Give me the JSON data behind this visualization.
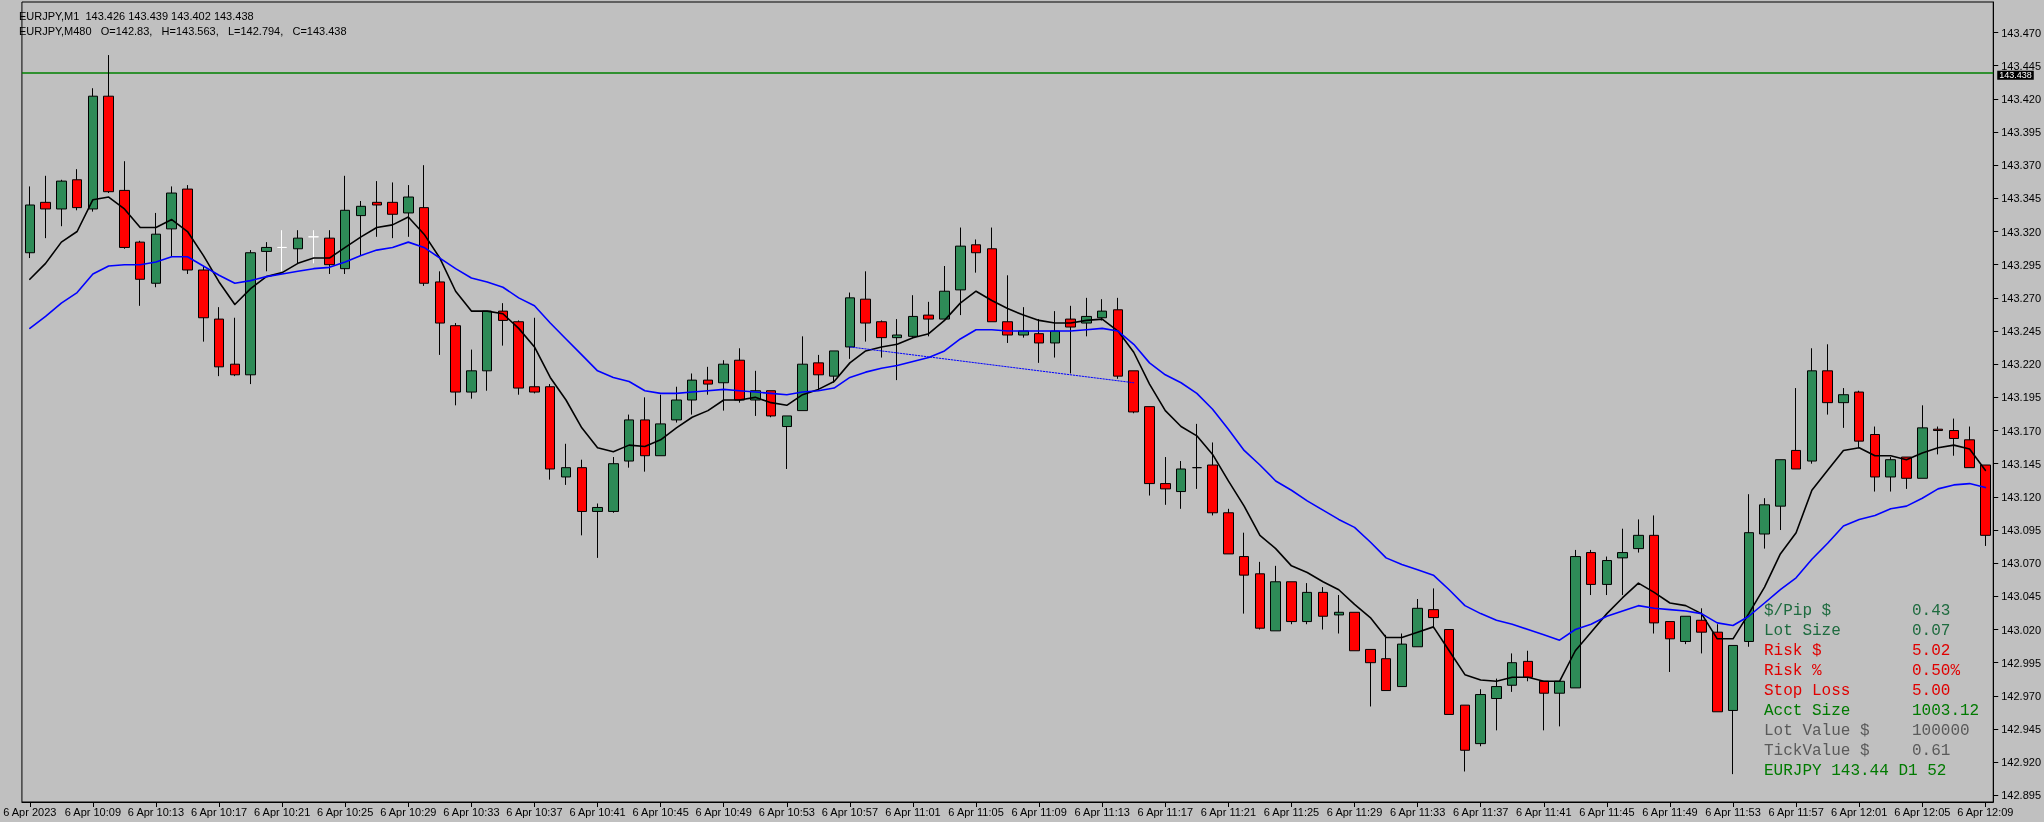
{
  "chart_data": {
    "type": "candlestick",
    "title": "EURJPY,M1  143.426 143.439 143.402 143.438",
    "subtitle": "EURJPY,M480   O=142.83,   H=143.563,   L=142.794,   C=143.438",
    "categories": [
      "6 Apr 2023",
      null,
      null,
      null,
      "6 Apr 10:09",
      null,
      null,
      null,
      "6 Apr 10:13",
      null,
      null,
      null,
      "6 Apr 10:17",
      null,
      null,
      null,
      "6 Apr 10:21",
      null,
      null,
      null,
      "6 Apr 10:25",
      null,
      null,
      null,
      "6 Apr 10:29",
      null,
      null,
      null,
      "6 Apr 10:33",
      null,
      null,
      null,
      "6 Apr 10:37",
      null,
      null,
      null,
      "6 Apr 10:41",
      null,
      null,
      null,
      "6 Apr 10:45",
      null,
      null,
      null,
      "6 Apr 10:49",
      null,
      null,
      null,
      "6 Apr 10:53",
      null,
      null,
      null,
      "6 Apr 10:57",
      null,
      null,
      null,
      "6 Apr 11:01",
      null,
      null,
      null,
      "6 Apr 11:05",
      null,
      null,
      null,
      "6 Apr 11:09",
      null,
      null,
      null,
      "6 Apr 11:13",
      null,
      null,
      null,
      "6 Apr 11:17",
      null,
      null,
      null,
      "6 Apr 11:21",
      null,
      null,
      null,
      "6 Apr 11:25",
      null,
      null,
      null,
      "6 Apr 11:29",
      null,
      null,
      null,
      "6 Apr 11:33",
      null,
      null,
      null,
      "6 Apr 11:37",
      null,
      null,
      null,
      "6 Apr 11:41",
      null,
      null,
      null,
      "6 Apr 11:45",
      null,
      null,
      null,
      "6 Apr 11:49",
      null,
      null,
      null,
      "6 Apr 11:53",
      null,
      null,
      null,
      "6 Apr 11:57",
      null,
      null,
      null,
      "6 Apr 12:01",
      null,
      null,
      null,
      "6 Apr 12:05",
      null,
      null,
      null,
      "6 Apr 12:09"
    ],
    "ohlc": [
      [
        143.304,
        143.354,
        143.3,
        143.34
      ],
      [
        143.342,
        143.362,
        143.315,
        143.337
      ],
      [
        143.337,
        143.359,
        143.324,
        143.358
      ],
      [
        143.359,
        143.367,
        143.336,
        143.338
      ],
      [
        143.337,
        143.428,
        143.335,
        143.422
      ],
      [
        143.422,
        143.453,
        143.349,
        143.35
      ],
      [
        143.351,
        143.373,
        143.307,
        143.308
      ],
      [
        143.312,
        143.313,
        143.264,
        143.284
      ],
      [
        143.281,
        143.334,
        143.278,
        143.318
      ],
      [
        143.322,
        143.354,
        143.301,
        143.349
      ],
      [
        143.352,
        143.355,
        143.288,
        143.291
      ],
      [
        143.291,
        143.294,
        143.237,
        143.255
      ],
      [
        143.254,
        143.263,
        143.211,
        143.218
      ],
      [
        143.22,
        143.255,
        143.211,
        143.212
      ],
      [
        143.212,
        143.306,
        143.205,
        143.304
      ],
      [
        143.305,
        143.312,
        143.29,
        143.308
      ],
      [
        143.308,
        143.321,
        143.29,
        143.308
      ],
      [
        143.307,
        143.321,
        143.296,
        143.315
      ],
      [
        143.316,
        143.321,
        143.296,
        143.316
      ],
      [
        143.315,
        143.321,
        143.288,
        143.295
      ],
      [
        143.292,
        143.362,
        143.288,
        143.336
      ],
      [
        143.332,
        143.343,
        143.302,
        143.339
      ],
      [
        143.342,
        143.358,
        143.316,
        143.34
      ],
      [
        143.342,
        143.357,
        143.315,
        143.333
      ],
      [
        143.334,
        143.355,
        143.316,
        143.346
      ],
      [
        143.338,
        143.37,
        143.279,
        143.281
      ],
      [
        143.282,
        143.29,
        143.227,
        143.251
      ],
      [
        143.249,
        143.251,
        143.189,
        143.199
      ],
      [
        143.199,
        143.231,
        143.194,
        143.215
      ],
      [
        143.215,
        143.26,
        143.2,
        143.26
      ],
      [
        143.26,
        143.266,
        143.234,
        143.253
      ],
      [
        143.252,
        143.253,
        143.197,
        143.202
      ],
      [
        143.203,
        143.255,
        143.198,
        143.199
      ],
      [
        143.203,
        143.205,
        143.133,
        143.141
      ],
      [
        143.135,
        143.16,
        143.129,
        143.142
      ],
      [
        143.142,
        143.148,
        143.091,
        143.109
      ],
      [
        143.109,
        143.115,
        143.074,
        143.112
      ],
      [
        143.109,
        143.15,
        143.108,
        143.145
      ],
      [
        143.147,
        143.182,
        143.142,
        143.178
      ],
      [
        143.178,
        143.195,
        143.139,
        143.151
      ],
      [
        143.151,
        143.197,
        143.151,
        143.175
      ],
      [
        143.178,
        143.203,
        143.176,
        143.193
      ],
      [
        143.193,
        143.213,
        143.182,
        143.208
      ],
      [
        143.208,
        143.218,
        143.197,
        143.205
      ],
      [
        143.206,
        143.223,
        143.185,
        143.22
      ],
      [
        143.223,
        143.232,
        143.191,
        143.193
      ],
      [
        143.193,
        143.215,
        143.181,
        143.2
      ],
      [
        143.2,
        143.2,
        143.18,
        143.181
      ],
      [
        143.173,
        143.181,
        143.141,
        143.181
      ],
      [
        143.185,
        143.241,
        143.185,
        143.22
      ],
      [
        143.221,
        143.227,
        143.201,
        143.212
      ],
      [
        143.211,
        143.23,
        143.206,
        143.23
      ],
      [
        143.233,
        143.274,
        143.224,
        143.27
      ],
      [
        143.269,
        143.29,
        143.237,
        143.251
      ],
      [
        143.252,
        143.253,
        143.225,
        143.24
      ],
      [
        143.24,
        143.254,
        143.208,
        143.242
      ],
      [
        143.241,
        143.272,
        143.24,
        143.256
      ],
      [
        143.257,
        143.267,
        143.241,
        143.254
      ],
      [
        143.254,
        143.294,
        143.254,
        143.275
      ],
      [
        143.276,
        143.323,
        143.257,
        143.309
      ],
      [
        143.31,
        143.314,
        143.289,
        143.304
      ],
      [
        143.307,
        143.323,
        143.252,
        143.252
      ],
      [
        143.252,
        143.287,
        143.236,
        143.242
      ],
      [
        143.242,
        143.263,
        143.24,
        143.245
      ],
      [
        143.243,
        143.254,
        143.221,
        143.236
      ],
      [
        143.236,
        143.26,
        143.225,
        143.245
      ],
      [
        143.254,
        143.264,
        143.213,
        143.248
      ],
      [
        143.251,
        143.27,
        143.241,
        143.256
      ],
      [
        143.255,
        143.269,
        143.253,
        143.26
      ],
      [
        143.261,
        143.27,
        143.209,
        143.211
      ],
      [
        143.215,
        143.215,
        143.183,
        143.184
      ],
      [
        143.188,
        143.188,
        143.121,
        143.13
      ],
      [
        143.13,
        143.15,
        143.114,
        143.126
      ],
      [
        143.124,
        143.147,
        143.111,
        143.141
      ],
      [
        143.142,
        143.175,
        143.126,
        143.142
      ],
      [
        143.144,
        143.161,
        143.106,
        143.108
      ],
      [
        143.108,
        143.111,
        143.077,
        143.077
      ],
      [
        143.075,
        143.093,
        143.032,
        143.061
      ],
      [
        143.062,
        143.071,
        143.02,
        143.021
      ],
      [
        143.019,
        143.068,
        143.019,
        143.056
      ],
      [
        143.056,
        143.056,
        143.024,
        143.026
      ],
      [
        143.026,
        143.055,
        143.024,
        143.048
      ],
      [
        143.048,
        143.052,
        143.02,
        143.03
      ],
      [
        143.031,
        143.046,
        143.017,
        143.033
      ],
      [
        143.033,
        143.033,
        143.004,
        143.004
      ],
      [
        143.005,
        143.005,
        142.962,
        142.995
      ],
      [
        142.998,
        143.016,
        142.974,
        142.974
      ],
      [
        142.977,
        143.017,
        142.977,
        143.009
      ],
      [
        143.007,
        143.043,
        143.007,
        143.036
      ],
      [
        143.035,
        143.051,
        143.021,
        143.029
      ],
      [
        143.02,
        143.02,
        142.956,
        142.956
      ],
      [
        142.963,
        142.963,
        142.913,
        142.929
      ],
      [
        142.934,
        142.975,
        142.932,
        142.971
      ],
      [
        142.968,
        142.983,
        142.944,
        142.977
      ],
      [
        142.978,
        143.002,
        142.973,
        142.995
      ],
      [
        142.996,
        143.004,
        142.981,
        142.984
      ],
      [
        142.981,
        142.981,
        142.944,
        142.972
      ],
      [
        142.972,
        142.981,
        142.947,
        142.981
      ],
      [
        142.976,
        143.08,
        142.976,
        143.075
      ],
      [
        143.078,
        143.08,
        143.046,
        143.054
      ],
      [
        143.054,
        143.075,
        143.046,
        143.072
      ],
      [
        143.074,
        143.096,
        143.046,
        143.078
      ],
      [
        143.081,
        143.103,
        143.078,
        143.091
      ],
      [
        143.091,
        143.106,
        143.017,
        143.025
      ],
      [
        143.026,
        143.026,
        142.988,
        143.013
      ],
      [
        143.011,
        143.03,
        143.009,
        143.03
      ],
      [
        143.027,
        143.036,
        143.002,
        143.018
      ],
      [
        143.018,
        143.024,
        142.958,
        142.958
      ],
      [
        142.959,
        143.008,
        142.911,
        143.008
      ],
      [
        143.011,
        143.122,
        143.007,
        143.093
      ],
      [
        143.092,
        143.119,
        143.081,
        143.114
      ],
      [
        143.113,
        143.148,
        143.095,
        143.148
      ],
      [
        143.155,
        143.202,
        143.141,
        143.141
      ],
      [
        143.147,
        143.232,
        143.145,
        143.215
      ],
      [
        143.215,
        143.235,
        143.182,
        143.191
      ],
      [
        143.191,
        143.202,
        143.172,
        143.197
      ],
      [
        143.199,
        143.2,
        143.157,
        143.162
      ],
      [
        143.167,
        143.173,
        143.124,
        143.135
      ],
      [
        143.135,
        143.15,
        143.124,
        143.148
      ],
      [
        143.15,
        143.15,
        143.126,
        143.134
      ],
      [
        143.134,
        143.189,
        143.134,
        143.172
      ],
      [
        143.171,
        143.173,
        143.152,
        143.17
      ],
      [
        143.17,
        143.179,
        143.151,
        143.164
      ],
      [
        143.163,
        143.173,
        143.142,
        143.142
      ],
      [
        143.144,
        143.144,
        143.083,
        143.091
      ]
    ],
    "colors": [
      "#2e8b57",
      "#ff0000",
      "#2e8b57",
      "#ff0000",
      "#2e8b57",
      "#ff0000",
      "#ff0000",
      "#ff0000",
      "#2e8b57",
      "#2e8b57",
      "#ff0000",
      "#ff0000",
      "#ff0000",
      "#ff0000",
      "#2e8b57",
      "#2e8b57",
      "#ffffff",
      "#2e8b57",
      "#ffffff",
      "#ff0000",
      "#2e8b57",
      "#2e8b57",
      "#ff0000",
      "#ff0000",
      "#2e8b57",
      "#ff0000",
      "#ff0000",
      "#ff0000",
      "#2e8b57",
      "#2e8b57",
      "#ff0000",
      "#ff0000",
      "#ff0000",
      "#ff0000",
      "#2e8b57",
      "#ff0000",
      "#2e8b57",
      "#2e8b57",
      "#2e8b57",
      "#ff0000",
      "#2e8b57",
      "#2e8b57",
      "#2e8b57",
      "#ff0000",
      "#2e8b57",
      "#ff0000",
      "#2e8b57",
      "#ff0000",
      "#2e8b57",
      "#2e8b57",
      "#ff0000",
      "#2e8b57",
      "#2e8b57",
      "#ff0000",
      "#ff0000",
      "#2e8b57",
      "#2e8b57",
      "#ff0000",
      "#2e8b57",
      "#2e8b57",
      "#ff0000",
      "#ff0000",
      "#ff0000",
      "#2e8b57",
      "#ff0000",
      "#2e8b57",
      "#ff0000",
      "#2e8b57",
      "#2e8b57",
      "#ff0000",
      "#ff0000",
      "#ff0000",
      "#ff0000",
      "#2e8b57",
      "#000000",
      "#ff0000",
      "#ff0000",
      "#ff0000",
      "#ff0000",
      "#2e8b57",
      "#ff0000",
      "#2e8b57",
      "#ff0000",
      "#2e8b57",
      "#ff0000",
      "#ff0000",
      "#ff0000",
      "#2e8b57",
      "#2e8b57",
      "#ff0000",
      "#ff0000",
      "#ff0000",
      "#2e8b57",
      "#2e8b57",
      "#2e8b57",
      "#ff0000",
      "#ff0000",
      "#2e8b57",
      "#2e8b57",
      "#ff0000",
      "#2e8b57",
      "#2e8b57",
      "#2e8b57",
      "#ff0000",
      "#ff0000",
      "#2e8b57",
      "#ff0000",
      "#ff0000",
      "#2e8b57",
      "#2e8b57",
      "#2e8b57",
      "#2e8b57",
      "#ff0000",
      "#2e8b57",
      "#ff0000",
      "#2e8b57",
      "#ff0000",
      "#ff0000",
      "#2e8b57",
      "#ff0000",
      "#2e8b57",
      "#ff0000",
      "#ff0000",
      "#ff0000",
      "#ff0000"
    ],
    "series": [
      {
        "type": "line",
        "color": "#000000",
        "values": [
          143.284,
          143.296,
          143.312,
          143.32,
          143.344,
          143.346,
          143.337,
          143.323,
          143.323,
          143.329,
          143.32,
          143.302,
          143.282,
          143.265,
          143.277,
          143.286,
          143.289,
          143.296,
          143.3,
          143.3,
          143.308,
          143.316,
          143.323,
          143.325,
          143.331,
          143.318,
          143.3,
          143.275,
          143.26,
          143.26,
          143.258,
          143.247,
          143.233,
          143.21,
          143.193,
          143.172,
          143.157,
          143.154,
          143.159,
          143.158,
          143.163,
          143.172,
          143.18,
          143.185,
          143.193,
          143.193,
          143.195,
          143.191,
          143.189,
          143.197,
          143.201,
          143.207,
          143.221,
          143.23,
          143.233,
          143.235,
          143.24,
          143.243,
          143.253,
          143.266,
          143.275,
          143.268,
          143.262,
          143.257,
          143.253,
          143.251,
          143.251,
          143.253,
          143.254,
          143.245,
          143.229,
          143.205,
          143.185,
          143.173,
          143.166,
          143.152,
          143.132,
          143.113,
          143.091,
          143.081,
          143.068,
          143.063,
          143.056,
          143.05,
          143.039,
          143.029,
          143.014,
          143.014,
          143.018,
          143.022,
          143.004,
          142.986,
          142.982,
          142.981,
          142.984,
          142.984,
          142.981,
          142.981,
          143.004,
          143.018,
          143.032,
          143.044,
          143.055,
          143.048,
          143.04,
          143.038,
          143.032,
          143.013,
          143.013,
          143.032,
          143.052,
          143.077,
          143.093,
          143.125,
          143.14,
          143.155,
          143.157,
          143.151,
          143.151,
          143.148,
          143.153,
          143.157,
          143.159,
          143.156,
          143.14
        ]
      },
      {
        "type": "line",
        "color": "#0000ff",
        "values": [
          143.247,
          143.256,
          143.266,
          143.274,
          143.288,
          143.294,
          143.295,
          143.295,
          143.297,
          143.301,
          143.301,
          143.294,
          143.287,
          143.281,
          143.283,
          143.286,
          143.288,
          143.29,
          143.292,
          143.293,
          143.297,
          143.302,
          143.306,
          143.308,
          143.312,
          143.308,
          143.3,
          143.292,
          143.285,
          143.282,
          143.278,
          143.27,
          143.264,
          143.251,
          143.239,
          143.227,
          143.215,
          143.21,
          143.207,
          143.2,
          143.198,
          143.198,
          143.199,
          143.2,
          143.201,
          143.2,
          143.199,
          143.198,
          143.197,
          143.199,
          143.2,
          143.202,
          143.21,
          143.214,
          143.217,
          143.219,
          143.222,
          143.225,
          143.23,
          143.239,
          143.246,
          143.246,
          143.245,
          143.245,
          143.245,
          143.245,
          143.245,
          143.246,
          143.247,
          143.245,
          143.235,
          143.221,
          143.212,
          143.206,
          143.198,
          143.186,
          143.171,
          143.155,
          143.144,
          143.132,
          143.125,
          143.117,
          143.11,
          143.103,
          143.097,
          143.086,
          143.074,
          143.069,
          143.065,
          143.061,
          143.05,
          143.038,
          143.032,
          143.027,
          143.024,
          143.02,
          143.016,
          143.012,
          143.02,
          143.024,
          143.03,
          143.034,
          143.038,
          143.036,
          143.035,
          143.034,
          143.032,
          143.025,
          143.023,
          143.03,
          143.04,
          143.05,
          143.059,
          143.073,
          143.085,
          143.098,
          143.103,
          143.106,
          143.111,
          143.113,
          143.119,
          143.126,
          143.129,
          143.13,
          143.127
        ]
      },
      {
        "type": "line",
        "color": "#0000ff",
        "line_style": "dotted",
        "values": [
          null,
          null,
          null,
          null,
          null,
          null,
          null,
          null,
          null,
          null,
          null,
          null,
          null,
          null,
          null,
          null,
          null,
          null,
          null,
          null,
          null,
          null,
          null,
          null,
          null,
          null,
          null,
          null,
          null,
          null,
          null,
          null,
          null,
          null,
          null,
          null,
          null,
          null,
          null,
          null,
          null,
          null,
          null,
          null,
          null,
          null,
          null,
          null,
          null,
          null,
          null,
          null,
          143.233,
          null,
          null,
          null,
          null,
          null,
          null,
          null,
          null,
          null,
          null,
          null,
          null,
          null,
          null,
          null,
          null,
          null,
          143.206,
          null,
          null,
          null,
          null,
          null,
          null,
          null,
          null,
          null,
          null,
          null,
          null,
          null,
          null,
          null,
          null,
          null,
          null,
          null,
          null,
          null,
          null,
          null,
          null,
          null,
          null,
          null,
          null,
          null,
          null,
          null,
          null,
          null,
          null,
          null,
          null,
          null,
          null,
          null,
          null,
          null,
          null,
          null,
          null,
          null,
          null,
          null,
          null,
          null,
          null,
          null,
          null,
          null,
          null
        ]
      }
    ],
    "ylim": [
      142.89,
      143.493
    ],
    "yticks": [
      142.895,
      {
        "value": 142.92,
        "label": "142.920"
      },
      142.945,
      {
        "value": 142.97,
        "label": "142.970"
      },
      142.995,
      {
        "value": 143.02,
        "label": "143.020"
      },
      143.045,
      {
        "value": 143.07,
        "label": "143.070"
      },
      143.095,
      {
        "value": 143.12,
        "label": "143.120"
      },
      143.145,
      {
        "value": 143.17,
        "label": "143.170"
      },
      143.195,
      {
        "value": 143.22,
        "label": "143.220"
      },
      143.245,
      {
        "value": 143.27,
        "label": "143.270"
      },
      143.295,
      {
        "value": 143.32,
        "label": "143.320"
      },
      143.345,
      {
        "value": 143.37,
        "label": "143.370"
      },
      143.395,
      {
        "value": 143.42,
        "label": "143.420"
      },
      143.445,
      {
        "value": 143.47,
        "label": "143.470"
      }
    ],
    "ref_lines": [
      {
        "axis": "y",
        "value": 143.438,
        "label": "143.438",
        "color": "#008000"
      }
    ],
    "annotations": [
      "$/Pip $",
      "0.43",
      "Lot Size",
      "0.07",
      "Risk $",
      "5.02",
      "Risk %",
      "0.50%",
      "Stop Loss",
      "5.00",
      "Acct Size",
      "1003.12",
      "Lot Value $",
      "100000",
      "TickValue $",
      "0.61",
      "EURJPY 143.44 D1 52"
    ],
    "grid": false
  }
}
